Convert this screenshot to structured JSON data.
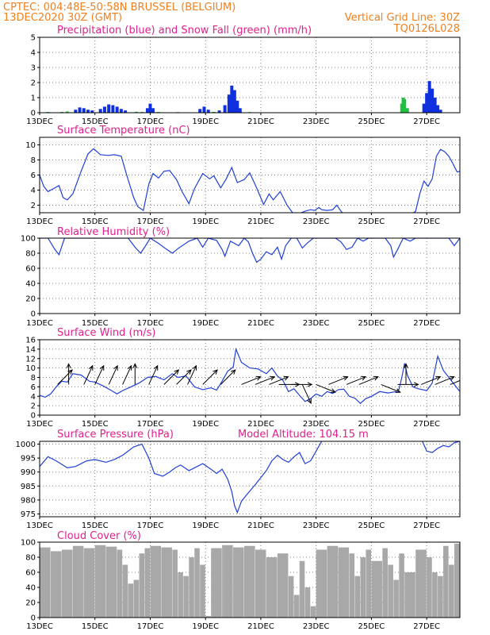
{
  "header": {
    "line1": "CPTEC:   004:48E-50:58N  BRUSSEL (BELGIUM)",
    "line2": "13DEC2020 30Z (GMT)",
    "grid_note": "Vertical Grid Line: 30Z",
    "code": "TQ0126L028"
  },
  "colors": {
    "header": "#f08020",
    "title": "#e0208c",
    "rain": "#1030e0",
    "snow": "#20c040",
    "line": "#1f3fd8",
    "cloud": "#a8a8a8",
    "grid": "#808080"
  },
  "chart_data": [
    {
      "type": "bar",
      "title": "Precipitation (blue) and Snow Fall (green) (mm/h)",
      "ylim": [
        0,
        5
      ],
      "yticks": [
        0,
        1,
        2,
        3,
        4,
        5
      ],
      "xticks": [
        "13DEC",
        "15DEC",
        "17DEC",
        "19DEC",
        "21DEC",
        "23DEC",
        "25DEC",
        "27DEC"
      ],
      "xlim_days": [
        13,
        28.2
      ],
      "grid": "dotted",
      "series": [
        {
          "name": "Precipitation",
          "color": "blue",
          "x": [
            14.3,
            14.45,
            14.6,
            14.75,
            14.9,
            15.2,
            15.35,
            15.5,
            15.65,
            15.8,
            15.95,
            16.1,
            16.9,
            17.0,
            17.1,
            18.8,
            18.95,
            19.1,
            19.5,
            19.7,
            19.85,
            19.95,
            20.05,
            20.15,
            20.25,
            26.9,
            27.0,
            27.1,
            27.2,
            27.3,
            27.4,
            27.5
          ],
          "values": [
            0.2,
            0.35,
            0.3,
            0.2,
            0.15,
            0.25,
            0.4,
            0.55,
            0.5,
            0.4,
            0.25,
            0.15,
            0.3,
            0.6,
            0.3,
            0.25,
            0.4,
            0.2,
            0.15,
            0.5,
            1.2,
            1.8,
            1.5,
            0.8,
            0.3,
            0.6,
            1.3,
            2.1,
            1.6,
            1.0,
            0.5,
            0.2
          ]
        },
        {
          "name": "Snow Fall",
          "color": "green",
          "x": [
            13.3,
            13.8,
            14.0,
            16.5,
            16.7,
            17.3,
            18.0,
            19.3,
            20.6,
            26.1,
            26.15,
            26.2,
            26.3
          ],
          "values": [
            0.05,
            0.05,
            0.08,
            0.06,
            0.05,
            0.05,
            0.04,
            0.06,
            0.04,
            0.6,
            1.0,
            0.9,
            0.3
          ]
        }
      ]
    },
    {
      "type": "line",
      "title": "Surface Temperature (nC)",
      "ylim": [
        1,
        11
      ],
      "yticks": [
        2,
        4,
        6,
        8,
        10
      ],
      "xticks": [
        "13DEC",
        "15DEC",
        "17DEC",
        "19DEC",
        "21DEC",
        "23DEC",
        "25DEC",
        "27DEC"
      ],
      "xlim_days": [
        13,
        28.2
      ],
      "series": [
        {
          "name": "Temperature",
          "x": [
            13.0,
            13.15,
            13.3,
            13.5,
            13.7,
            13.85,
            14.0,
            14.2,
            14.5,
            14.75,
            14.95,
            15.2,
            15.5,
            15.7,
            15.95,
            16.15,
            16.4,
            16.55,
            16.75,
            16.95,
            17.1,
            17.3,
            17.5,
            17.7,
            17.95,
            18.15,
            18.4,
            18.6,
            18.9,
            19.15,
            19.3,
            19.55,
            19.75,
            19.95,
            20.15,
            20.4,
            20.6,
            20.85,
            21.1,
            21.3,
            21.45,
            21.7,
            21.95,
            22.15,
            22.4,
            22.6,
            22.8,
            22.95,
            23.1,
            23.2,
            23.4,
            23.6,
            23.75,
            23.9,
            24.0,
            24.3,
            24.6,
            24.9,
            25.2,
            25.5,
            25.8,
            26.0,
            26.15,
            26.3,
            26.45,
            26.6,
            26.75,
            26.9,
            27.05,
            27.2,
            27.35,
            27.5,
            27.65,
            27.8,
            27.95,
            28.1,
            28.2
          ],
          "values": [
            6.0,
            4.5,
            3.8,
            4.2,
            4.6,
            3.0,
            2.7,
            3.5,
            6.5,
            8.8,
            9.5,
            8.7,
            8.6,
            8.7,
            8.5,
            6.0,
            3.0,
            1.8,
            1.3,
            4.8,
            6.2,
            5.6,
            6.5,
            6.6,
            5.4,
            3.8,
            2.2,
            4.2,
            6.2,
            5.5,
            5.9,
            4.3,
            5.5,
            7.0,
            5.0,
            5.4,
            6.3,
            4.3,
            2.1,
            3.5,
            2.7,
            3.8,
            2.0,
            1.0,
            0.9,
            1.2,
            1.4,
            1.3,
            1.7,
            1.4,
            1.3,
            1.4,
            2.0,
            1.2,
            0.8,
            0.5,
            0.5,
            0.5,
            0.5,
            0.5,
            0.5,
            0.5,
            0.6,
            0.5,
            0.8,
            1.2,
            3.5,
            5.2,
            4.5,
            5.5,
            8.5,
            9.4,
            9.1,
            8.5,
            7.5,
            6.4,
            6.5
          ]
        }
      ]
    },
    {
      "type": "line",
      "title": "Relative Humidity (%)",
      "ylim": [
        0,
        100
      ],
      "yticks": [
        0,
        20,
        40,
        60,
        80,
        100
      ],
      "xticks": [
        "13DEC",
        "15DEC",
        "17DEC",
        "19DEC",
        "21DEC",
        "23DEC",
        "25DEC",
        "27DEC"
      ],
      "xlim_days": [
        13,
        28.2
      ],
      "series": [
        {
          "name": "Relative Humidity",
          "x": [
            13.0,
            13.3,
            13.55,
            13.7,
            13.9,
            14.3,
            14.8,
            15.3,
            15.8,
            16.2,
            16.45,
            16.65,
            16.8,
            17.0,
            17.3,
            17.6,
            17.8,
            18.0,
            18.4,
            18.7,
            18.9,
            19.1,
            19.4,
            19.6,
            19.7,
            19.9,
            20.2,
            20.4,
            20.55,
            20.7,
            20.85,
            21.0,
            21.2,
            21.4,
            21.6,
            21.75,
            21.9,
            22.1,
            22.3,
            22.5,
            22.7,
            22.9,
            23.1,
            23.3,
            23.5,
            23.7,
            23.9,
            24.1,
            24.3,
            24.5,
            24.7,
            24.9,
            25.1,
            25.3,
            25.5,
            25.7,
            25.8,
            25.95,
            26.15,
            26.4,
            26.6,
            26.8,
            27.0,
            27.3,
            27.6,
            27.8,
            28.0,
            28.2
          ],
          "values": [
            100,
            100,
            85,
            78,
            100,
            100,
            100,
            100,
            100,
            100,
            88,
            80,
            88,
            100,
            93,
            85,
            80,
            86,
            96,
            100,
            88,
            100,
            97,
            85,
            76,
            96,
            90,
            100,
            95,
            80,
            68,
            72,
            82,
            78,
            88,
            72,
            90,
            100,
            100,
            87,
            94,
            100,
            100,
            100,
            100,
            100,
            95,
            85,
            88,
            100,
            96,
            100,
            100,
            100,
            100,
            90,
            75,
            85,
            100,
            96,
            100,
            100,
            100,
            100,
            100,
            100,
            90,
            100
          ]
        }
      ]
    },
    {
      "type": "line",
      "title": "Surface Wind (m/s)",
      "ylim": [
        0,
        16
      ],
      "yticks": [
        0,
        2,
        4,
        6,
        8,
        10,
        12,
        14,
        16
      ],
      "xticks": [
        "13DEC",
        "15DEC",
        "17DEC",
        "19DEC",
        "21DEC",
        "23DEC",
        "25DEC",
        "27DEC"
      ],
      "xlim_days": [
        13,
        28.2
      ],
      "series": [
        {
          "name": "Wind Speed",
          "x": [
            13.0,
            13.2,
            13.4,
            13.6,
            13.8,
            14.0,
            14.2,
            14.5,
            14.8,
            15.0,
            15.3,
            15.6,
            15.8,
            16.0,
            16.3,
            16.6,
            16.9,
            17.2,
            17.5,
            17.8,
            18.0,
            18.3,
            18.6,
            18.9,
            19.2,
            19.4,
            19.6,
            19.8,
            20.0,
            20.1,
            20.3,
            20.6,
            20.9,
            21.2,
            21.4,
            21.6,
            21.8,
            22.0,
            22.2,
            22.4,
            22.6,
            22.8,
            23.0,
            23.2,
            23.4,
            23.6,
            23.8,
            24.0,
            24.2,
            24.4,
            24.6,
            24.8,
            25.0,
            25.3,
            25.6,
            25.9,
            26.0,
            26.1,
            26.2,
            26.3,
            26.5,
            26.7,
            27.0,
            27.2,
            27.4,
            27.6,
            27.8,
            28.0,
            28.2
          ],
          "values": [
            4.2,
            3.8,
            4.5,
            6.0,
            7.2,
            7.0,
            8.8,
            8.5,
            7.2,
            7.0,
            6.2,
            5.2,
            4.5,
            5.2,
            6.0,
            6.8,
            8.0,
            8.2,
            7.5,
            8.8,
            8.0,
            8.3,
            6.0,
            5.4,
            5.8,
            5.3,
            7.2,
            9.3,
            10.2,
            14.0,
            11.2,
            10.0,
            9.8,
            8.8,
            10.0,
            8.3,
            7.4,
            5.0,
            5.6,
            4.2,
            2.9,
            3.5,
            4.5,
            4.0,
            5.0,
            4.6,
            5.4,
            5.5,
            4.0,
            3.6,
            2.5,
            3.5,
            4.0,
            5.0,
            4.7,
            5.0,
            5.5,
            8.0,
            11.0,
            8.5,
            6.0,
            5.6,
            5.2,
            6.8,
            12.5,
            9.5,
            8.0,
            6.5,
            5.0
          ]
        }
      ],
      "wind_barbs": [
        {
          "x": 13.65,
          "dir": "NE"
        },
        {
          "x": 14.05,
          "dir": "N"
        },
        {
          "x": 14.6,
          "dir": "NNE"
        },
        {
          "x": 15.0,
          "dir": "NNE"
        },
        {
          "x": 15.5,
          "dir": "NNE"
        },
        {
          "x": 16.0,
          "dir": "NNE"
        },
        {
          "x": 16.45,
          "dir": "N"
        },
        {
          "x": 16.95,
          "dir": "NNE"
        },
        {
          "x": 17.5,
          "dir": "NE"
        },
        {
          "x": 17.95,
          "dir": "NE"
        },
        {
          "x": 18.35,
          "dir": "NNE"
        },
        {
          "x": 18.9,
          "dir": "NE"
        },
        {
          "x": 19.55,
          "dir": "NE"
        },
        {
          "x": 20.3,
          "dir": "ENE"
        },
        {
          "x": 20.8,
          "dir": "ENE"
        },
        {
          "x": 21.3,
          "dir": "ENE"
        },
        {
          "x": 21.65,
          "dir": "E"
        },
        {
          "x": 22.1,
          "dir": "E"
        },
        {
          "x": 22.5,
          "dir": "SSE"
        },
        {
          "x": 23.0,
          "dir": "ESE"
        },
        {
          "x": 23.45,
          "dir": "ENE"
        },
        {
          "x": 24.1,
          "dir": "ENE"
        },
        {
          "x": 24.55,
          "dir": "ENE"
        },
        {
          "x": 25.35,
          "dir": "ESE"
        },
        {
          "x": 25.95,
          "dir": "E"
        },
        {
          "x": 26.25,
          "dir": "N"
        },
        {
          "x": 26.8,
          "dir": "ENE"
        },
        {
          "x": 27.3,
          "dir": "ENE"
        },
        {
          "x": 27.85,
          "dir": "ENE"
        }
      ]
    },
    {
      "type": "line",
      "title": "Surface Pressure (hPa)",
      "annotation": "Model Altitude: 104.15 m",
      "ylim": [
        974,
        1001
      ],
      "yticks": [
        975,
        980,
        985,
        990,
        995,
        1000
      ],
      "xticks": [
        "13DEC",
        "15DEC",
        "17DEC",
        "19DEC",
        "21DEC",
        "23DEC",
        "25DEC",
        "27DEC"
      ],
      "xlim_days": [
        13,
        28.2
      ],
      "series": [
        {
          "name": "Pressure",
          "x": [
            13.0,
            13.3,
            13.6,
            14.0,
            14.3,
            14.7,
            15.0,
            15.4,
            15.7,
            16.0,
            16.4,
            16.7,
            16.95,
            17.15,
            17.45,
            17.7,
            17.9,
            18.1,
            18.4,
            18.7,
            18.9,
            19.2,
            19.4,
            19.6,
            19.8,
            19.95,
            20.05,
            20.15,
            20.3,
            20.5,
            20.8,
            21.0,
            21.2,
            21.4,
            21.6,
            21.8,
            22.0,
            22.2,
            22.4,
            22.6,
            22.8,
            23.0,
            23.2,
            23.5,
            24.0,
            24.5,
            25.0,
            25.5,
            26.0,
            26.5,
            26.8,
            27.0,
            27.2,
            27.4,
            27.6,
            27.8,
            28.0,
            28.2
          ],
          "values": [
            992.0,
            995.5,
            994.0,
            991.5,
            992.0,
            994.0,
            994.5,
            993.5,
            994.5,
            996.0,
            999.0,
            1000.0,
            995.0,
            989.5,
            988.5,
            990.0,
            991.5,
            992.5,
            990.5,
            992.0,
            993.0,
            991.0,
            989.5,
            991.0,
            987.5,
            983.0,
            978.0,
            975.5,
            979.5,
            982.0,
            985.5,
            988.0,
            990.5,
            994.0,
            996.0,
            994.5,
            993.5,
            995.5,
            997.0,
            993.0,
            994.0,
            997.5,
            1001.0,
            1003.0,
            1003.0,
            1003.0,
            1003.0,
            1003.0,
            1003.0,
            1003.0,
            1002.0,
            997.5,
            997.0,
            998.5,
            999.5,
            999.0,
            1000.5,
            1001.0
          ]
        }
      ]
    },
    {
      "type": "bar",
      "title": "Cloud Cover (%)",
      "ylim": [
        0,
        100
      ],
      "yticks": [
        0,
        20,
        40,
        60,
        80,
        100
      ],
      "xticks": [
        "13DEC",
        "15DEC",
        "17DEC",
        "19DEC",
        "21DEC",
        "23DEC",
        "25DEC",
        "27DEC"
      ],
      "xlim_days": [
        13,
        28.2
      ],
      "series": [
        {
          "name": "Cloud Cover",
          "x": [
            13.0,
            13.4,
            13.8,
            14.2,
            14.6,
            15.0,
            15.4,
            15.8,
            16.0,
            16.2,
            16.4,
            16.6,
            16.8,
            17.0,
            17.4,
            17.8,
            18.0,
            18.2,
            18.4,
            18.6,
            18.8,
            19.0,
            19.2,
            19.6,
            20.0,
            20.4,
            20.8,
            21.2,
            21.6,
            22.0,
            22.2,
            22.4,
            22.6,
            22.8,
            23.0,
            23.4,
            23.8,
            24.2,
            24.4,
            24.6,
            24.8,
            25.0,
            25.4,
            25.6,
            25.8,
            26.0,
            26.2,
            26.6,
            27.0,
            27.2,
            27.4,
            27.6,
            27.8,
            28.0
          ],
          "values": [
            93,
            88,
            90,
            95,
            92,
            96,
            94,
            90,
            70,
            45,
            50,
            85,
            92,
            95,
            93,
            90,
            60,
            55,
            80,
            92,
            70,
            2,
            92,
            96,
            93,
            95,
            90,
            80,
            85,
            55,
            30,
            75,
            40,
            15,
            90,
            95,
            93,
            85,
            55,
            80,
            90,
            75,
            92,
            70,
            50,
            85,
            60,
            90,
            80,
            60,
            55,
            95,
            70,
            98
          ]
        }
      ]
    }
  ]
}
